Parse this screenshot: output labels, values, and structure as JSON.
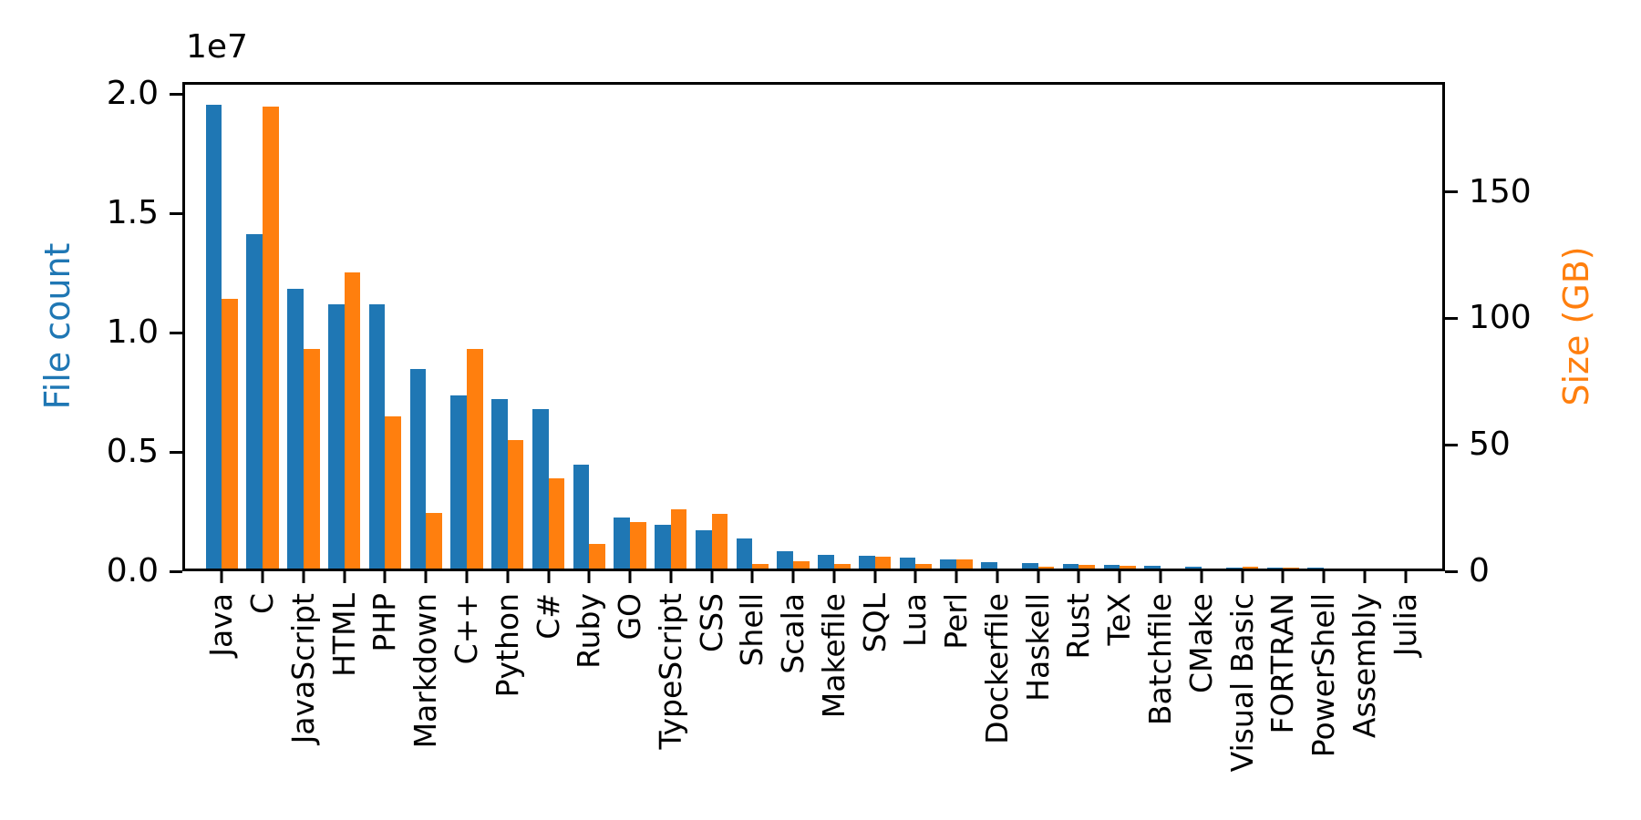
{
  "figure": {
    "background": "#ffffff"
  },
  "chart_data": {
    "type": "bar",
    "title": "",
    "categories": [
      "Java",
      "C",
      "JavaScript",
      "HTML",
      "PHP",
      "Markdown",
      "C++",
      "Python",
      "C#",
      "Ruby",
      "GO",
      "TypeScript",
      "CSS",
      "Shell",
      "Scala",
      "Makefile",
      "SQL",
      "Lua",
      "Perl",
      "Dockerfile",
      "Haskell",
      "Rust",
      "TeX",
      "Batchfile",
      "CMake",
      "Visual Basic",
      "FORTRAN",
      "PowerShell",
      "Assembly",
      "Julia"
    ],
    "series": [
      {
        "name": "File count",
        "axis": "left",
        "color": "#1f77b4",
        "values": [
          19548190,
          14143113,
          11839883,
          11178557,
          11177610,
          8464626,
          7380520,
          7226626,
          6811652,
          4473331,
          2265436,
          1940406,
          1734406,
          1385648,
          835755,
          679430,
          656671,
          578554,
          497949,
          366505,
          340623,
          322431,
          251015,
          236945,
          175282,
          155652,
          142038,
          136846,
          82905,
          58317
        ]
      },
      {
        "name": "Size (GB)",
        "axis": "right",
        "color": "#ff7f0e",
        "values": [
          107.7,
          183.83,
          87.82,
          118.12,
          61.41,
          23.09,
          87.73,
          52.03,
          36.83,
          10.95,
          19.28,
          24.59,
          22.67,
          3.01,
          3.87,
          2.92,
          5.67,
          2.81,
          4.7,
          0.71,
          1.85,
          2.68,
          2.15,
          0.7,
          0.54,
          1.91,
          1.62,
          0.69,
          0.78,
          0.29
        ]
      }
    ],
    "left_axis": {
      "label": "File count",
      "color": "#1f77b4",
      "offset_text": "1e7",
      "tick_labels": [
        "0.0",
        "0.5",
        "1.0",
        "1.5",
        "2.0"
      ],
      "tick_values": [
        0,
        5000000,
        10000000,
        15000000,
        20000000
      ],
      "range": [
        0,
        20500000
      ]
    },
    "right_axis": {
      "label": "Size (GB)",
      "color": "#ff7f0e",
      "tick_labels": [
        "0",
        "50",
        "100",
        "150"
      ],
      "tick_values": [
        0,
        50,
        100,
        150
      ],
      "range": [
        0,
        193.4
      ]
    },
    "x_axis": {
      "tick_label_rotation": 90
    },
    "grid": false,
    "legend": false
  }
}
